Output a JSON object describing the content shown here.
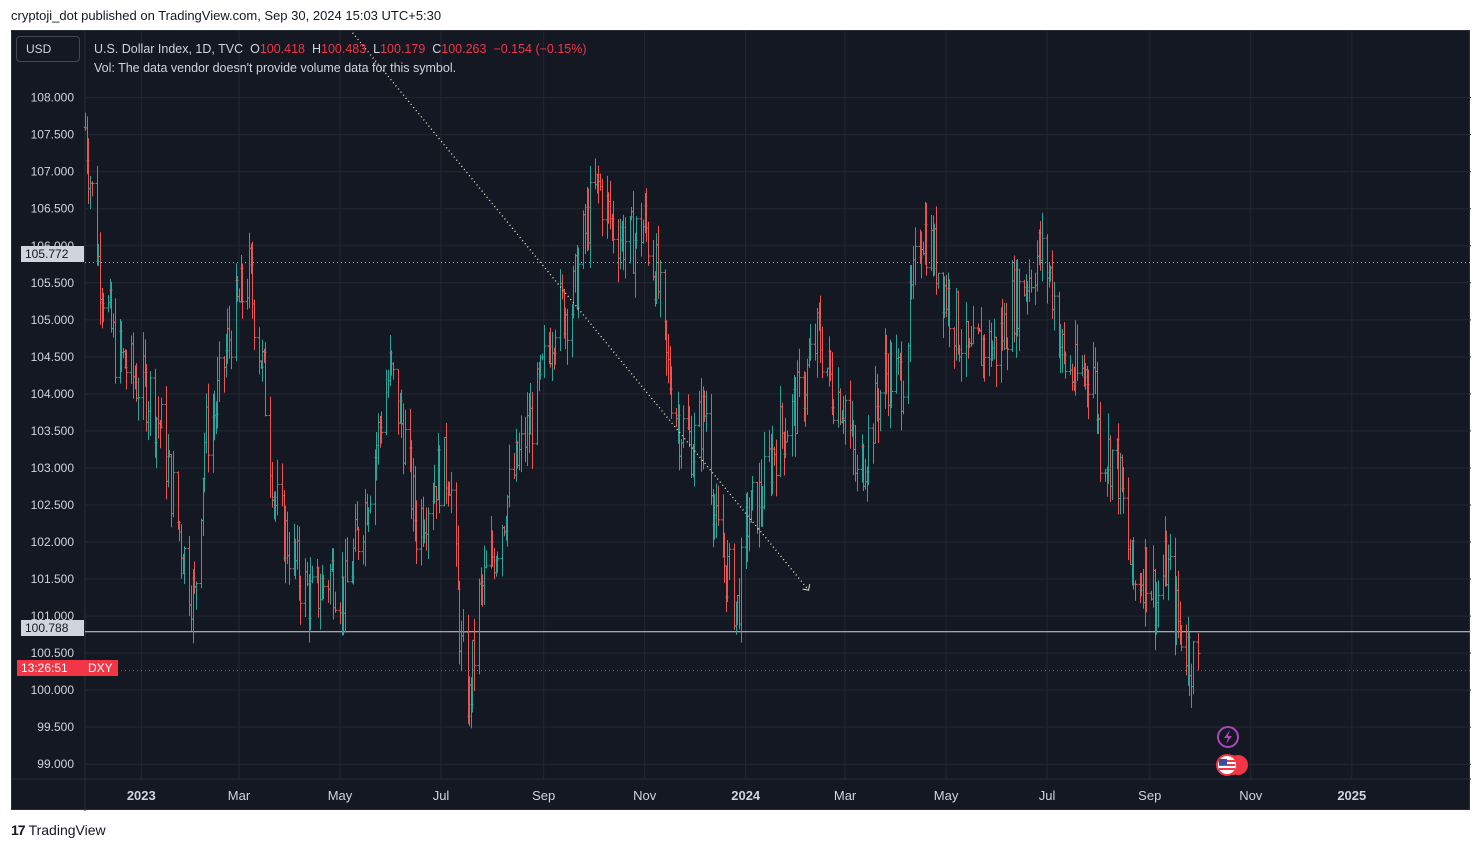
{
  "caption": "cryptoji_dot published on TradingView.com, Sep 30, 2024 15:03 UTC+5:30",
  "brand": "TradingView",
  "currency_button": "USD",
  "legend": {
    "symbol": "U.S. Dollar Index, 1D, TVC",
    "open_label": "O",
    "open": "100.418",
    "high_label": "H",
    "high": "100.483",
    "low_label": "L",
    "low": "100.179",
    "close_label": "C",
    "close": "100.263",
    "change": "−0.154 (−0.15%)",
    "volume_note": "Vol: The data vendor doesn't provide volume data for this symbol."
  },
  "price_tags": {
    "upper_line": "105.772",
    "lower_line": "100.788",
    "countdown": "13:26:51",
    "ticker": "DXY"
  },
  "colors": {
    "up": "#26a69a",
    "down": "#ef5350",
    "background": "#141823",
    "grid": "#2a2e39"
  },
  "icons": [
    "lightning-icon",
    "us-flag-icon"
  ],
  "chart_data": {
    "type": "bar",
    "title": "",
    "ylim": [
      98.8,
      108.9
    ],
    "y_ticks": [
      "99.000",
      "99.500",
      "100.000",
      "100.500",
      "101.000",
      "101.500",
      "102.000",
      "102.500",
      "103.000",
      "103.500",
      "104.000",
      "104.500",
      "105.000",
      "105.500",
      "106.000",
      "106.500",
      "107.000",
      "107.500",
      "108.000"
    ],
    "x_ticks": [
      "2023",
      "Mar",
      "May",
      "Jul",
      "Sep",
      "Nov",
      "2024",
      "Mar",
      "May",
      "Jul",
      "Sep",
      "Nov",
      "2025"
    ],
    "x_tick_dates": [
      "2023-01-01",
      "2023-03-01",
      "2023-05-01",
      "2023-07-01",
      "2023-09-01",
      "2023-11-01",
      "2024-01-01",
      "2024-03-01",
      "2024-05-01",
      "2024-07-01",
      "2024-09-01",
      "2024-11-01",
      "2025-01-01"
    ],
    "x_range": [
      "2022-11-28",
      "2025-03-14"
    ],
    "horizontal_lines": [
      {
        "value": 105.772,
        "style": "dotted"
      },
      {
        "value": 100.788,
        "style": "solid"
      },
      {
        "value": 100.263,
        "style": "dotted-red"
      }
    ],
    "trend_line": {
      "from": {
        "date": "2023-05-04",
        "value": 109.0
      },
      "to": {
        "date": "2024-02-08",
        "value": 101.35
      },
      "style": "dotted"
    },
    "close_path": [
      [
        "2022-11-28",
        107.6
      ],
      [
        "2022-12-06",
        105.8
      ],
      [
        "2022-12-16",
        104.6
      ],
      [
        "2022-12-28",
        104.2
      ],
      [
        "2023-01-06",
        104.0
      ],
      [
        "2023-01-13",
        103.5
      ],
      [
        "2023-01-26",
        101.9
      ],
      [
        "2023-02-02",
        101.2
      ],
      [
        "2023-02-08",
        103.4
      ],
      [
        "2023-02-15",
        103.8
      ],
      [
        "2023-02-24",
        104.9
      ],
      [
        "2023-03-07",
        105.6
      ],
      [
        "2023-03-16",
        104.2
      ],
      [
        "2023-03-23",
        102.5
      ],
      [
        "2023-04-05",
        101.6
      ],
      [
        "2023-04-14",
        101.2
      ],
      [
        "2023-04-26",
        101.6
      ],
      [
        "2023-05-04",
        101.3
      ],
      [
        "2023-05-16",
        102.5
      ],
      [
        "2023-05-31",
        104.3
      ],
      [
        "2023-06-08",
        103.5
      ],
      [
        "2023-06-16",
        102.2
      ],
      [
        "2023-06-28",
        102.9
      ],
      [
        "2023-07-06",
        103.0
      ],
      [
        "2023-07-13",
        100.5
      ],
      [
        "2023-07-18",
        99.8
      ],
      [
        "2023-07-24",
        101.2
      ],
      [
        "2023-08-02",
        101.9
      ],
      [
        "2023-08-10",
        102.6
      ],
      [
        "2023-08-18",
        103.2
      ],
      [
        "2023-08-28",
        103.9
      ],
      [
        "2023-09-08",
        105.1
      ],
      [
        "2023-09-18",
        105.2
      ],
      [
        "2023-09-28",
        106.4
      ],
      [
        "2023-10-04",
        106.8
      ],
      [
        "2023-10-12",
        106.3
      ],
      [
        "2023-10-23",
        106.0
      ],
      [
        "2023-11-01",
        106.3
      ],
      [
        "2023-11-08",
        105.6
      ],
      [
        "2023-11-14",
        104.4
      ],
      [
        "2023-11-22",
        103.6
      ],
      [
        "2023-11-30",
        103.3
      ],
      [
        "2023-12-08",
        103.8
      ],
      [
        "2023-12-14",
        102.1
      ],
      [
        "2023-12-27",
        101.1
      ],
      [
        "2024-01-02",
        102.3
      ],
      [
        "2024-01-10",
        102.6
      ],
      [
        "2024-01-18",
        103.3
      ],
      [
        "2024-02-02",
        103.9
      ],
      [
        "2024-02-14",
        104.8
      ],
      [
        "2024-02-22",
        104.1
      ],
      [
        "2024-03-01",
        103.9
      ],
      [
        "2024-03-08",
        102.8
      ],
      [
        "2024-03-14",
        103.3
      ],
      [
        "2024-03-25",
        104.3
      ],
      [
        "2024-04-04",
        104.2
      ],
      [
        "2024-04-16",
        106.3
      ],
      [
        "2024-04-25",
        105.8
      ],
      [
        "2024-05-02",
        105.3
      ],
      [
        "2024-05-15",
        104.4
      ],
      [
        "2024-05-24",
        104.7
      ],
      [
        "2024-05-31",
        104.6
      ],
      [
        "2024-06-10",
        105.2
      ],
      [
        "2024-06-26",
        105.9
      ],
      [
        "2024-07-03",
        105.6
      ],
      [
        "2024-07-11",
        104.4
      ],
      [
        "2024-07-19",
        104.2
      ],
      [
        "2024-07-29",
        104.4
      ],
      [
        "2024-08-02",
        103.3
      ],
      [
        "2024-08-12",
        103.1
      ],
      [
        "2024-08-22",
        101.4
      ],
      [
        "2024-08-30",
        101.7
      ],
      [
        "2024-09-05",
        101.2
      ],
      [
        "2024-09-11",
        101.7
      ],
      [
        "2024-09-18",
        100.9
      ],
      [
        "2024-09-27",
        100.4
      ],
      [
        "2024-09-30",
        100.263
      ]
    ]
  }
}
